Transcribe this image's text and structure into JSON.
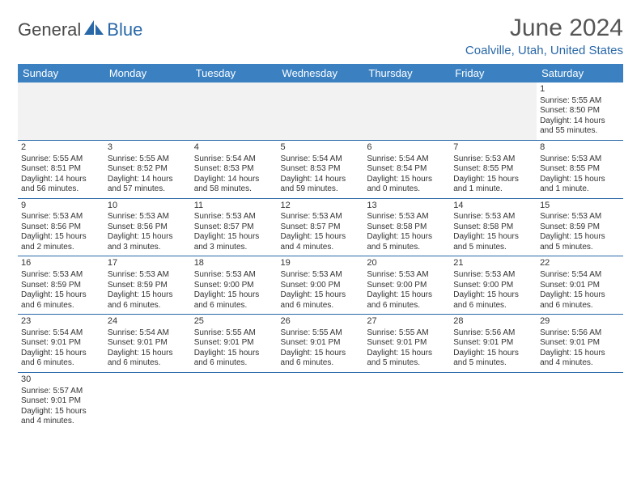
{
  "logo": {
    "dark": "General",
    "blue": "Blue"
  },
  "title": "June 2024",
  "location": "Coalville, Utah, United States",
  "header_bg": "#3b81c2",
  "accent": "#2968a8",
  "days": [
    "Sunday",
    "Monday",
    "Tuesday",
    "Wednesday",
    "Thursday",
    "Friday",
    "Saturday"
  ],
  "weeks": [
    [
      null,
      null,
      null,
      null,
      null,
      null,
      {
        "n": "1",
        "sr": "5:55 AM",
        "ss": "8:50 PM",
        "dl": "14 hours and 55 minutes."
      }
    ],
    [
      {
        "n": "2",
        "sr": "5:55 AM",
        "ss": "8:51 PM",
        "dl": "14 hours and 56 minutes."
      },
      {
        "n": "3",
        "sr": "5:55 AM",
        "ss": "8:52 PM",
        "dl": "14 hours and 57 minutes."
      },
      {
        "n": "4",
        "sr": "5:54 AM",
        "ss": "8:53 PM",
        "dl": "14 hours and 58 minutes."
      },
      {
        "n": "5",
        "sr": "5:54 AM",
        "ss": "8:53 PM",
        "dl": "14 hours and 59 minutes."
      },
      {
        "n": "6",
        "sr": "5:54 AM",
        "ss": "8:54 PM",
        "dl": "15 hours and 0 minutes."
      },
      {
        "n": "7",
        "sr": "5:53 AM",
        "ss": "8:55 PM",
        "dl": "15 hours and 1 minute."
      },
      {
        "n": "8",
        "sr": "5:53 AM",
        "ss": "8:55 PM",
        "dl": "15 hours and 1 minute."
      }
    ],
    [
      {
        "n": "9",
        "sr": "5:53 AM",
        "ss": "8:56 PM",
        "dl": "15 hours and 2 minutes."
      },
      {
        "n": "10",
        "sr": "5:53 AM",
        "ss": "8:56 PM",
        "dl": "15 hours and 3 minutes."
      },
      {
        "n": "11",
        "sr": "5:53 AM",
        "ss": "8:57 PM",
        "dl": "15 hours and 3 minutes."
      },
      {
        "n": "12",
        "sr": "5:53 AM",
        "ss": "8:57 PM",
        "dl": "15 hours and 4 minutes."
      },
      {
        "n": "13",
        "sr": "5:53 AM",
        "ss": "8:58 PM",
        "dl": "15 hours and 5 minutes."
      },
      {
        "n": "14",
        "sr": "5:53 AM",
        "ss": "8:58 PM",
        "dl": "15 hours and 5 minutes."
      },
      {
        "n": "15",
        "sr": "5:53 AM",
        "ss": "8:59 PM",
        "dl": "15 hours and 5 minutes."
      }
    ],
    [
      {
        "n": "16",
        "sr": "5:53 AM",
        "ss": "8:59 PM",
        "dl": "15 hours and 6 minutes."
      },
      {
        "n": "17",
        "sr": "5:53 AM",
        "ss": "8:59 PM",
        "dl": "15 hours and 6 minutes."
      },
      {
        "n": "18",
        "sr": "5:53 AM",
        "ss": "9:00 PM",
        "dl": "15 hours and 6 minutes."
      },
      {
        "n": "19",
        "sr": "5:53 AM",
        "ss": "9:00 PM",
        "dl": "15 hours and 6 minutes."
      },
      {
        "n": "20",
        "sr": "5:53 AM",
        "ss": "9:00 PM",
        "dl": "15 hours and 6 minutes."
      },
      {
        "n": "21",
        "sr": "5:53 AM",
        "ss": "9:00 PM",
        "dl": "15 hours and 6 minutes."
      },
      {
        "n": "22",
        "sr": "5:54 AM",
        "ss": "9:01 PM",
        "dl": "15 hours and 6 minutes."
      }
    ],
    [
      {
        "n": "23",
        "sr": "5:54 AM",
        "ss": "9:01 PM",
        "dl": "15 hours and 6 minutes."
      },
      {
        "n": "24",
        "sr": "5:54 AM",
        "ss": "9:01 PM",
        "dl": "15 hours and 6 minutes."
      },
      {
        "n": "25",
        "sr": "5:55 AM",
        "ss": "9:01 PM",
        "dl": "15 hours and 6 minutes."
      },
      {
        "n": "26",
        "sr": "5:55 AM",
        "ss": "9:01 PM",
        "dl": "15 hours and 6 minutes."
      },
      {
        "n": "27",
        "sr": "5:55 AM",
        "ss": "9:01 PM",
        "dl": "15 hours and 5 minutes."
      },
      {
        "n": "28",
        "sr": "5:56 AM",
        "ss": "9:01 PM",
        "dl": "15 hours and 5 minutes."
      },
      {
        "n": "29",
        "sr": "5:56 AM",
        "ss": "9:01 PM",
        "dl": "15 hours and 4 minutes."
      }
    ],
    [
      {
        "n": "30",
        "sr": "5:57 AM",
        "ss": "9:01 PM",
        "dl": "15 hours and 4 minutes."
      },
      null,
      null,
      null,
      null,
      null,
      null
    ]
  ]
}
